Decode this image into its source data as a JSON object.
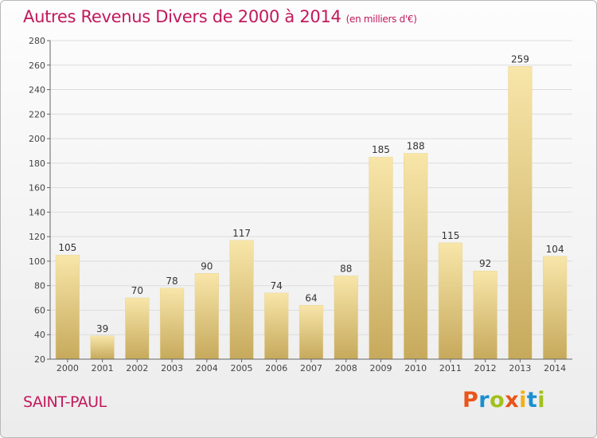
{
  "title": "Autres Revenus Divers de 2000 à 2014",
  "unit": "(en milliers d'€)",
  "place": "SAINT-PAUL",
  "logo": {
    "text": "Proxiti",
    "colors": [
      "#e9541a",
      "#1b8fd0",
      "#a2c11c",
      "#e9541a",
      "#f2b016",
      "#1b8fd0",
      "#a2c11c"
    ]
  },
  "colors": {
    "title": "#c2195b",
    "bar_light": "#f7e3a4",
    "bar_dark": "#c9ad62"
  },
  "chart_data": {
    "type": "bar",
    "title": "Autres Revenus Divers de 2000 à 2014",
    "xlabel": "",
    "ylabel": "",
    "categories": [
      "2000",
      "2001",
      "2002",
      "2003",
      "2004",
      "2005",
      "2006",
      "2007",
      "2008",
      "2009",
      "2010",
      "2011",
      "2012",
      "2013",
      "2014"
    ],
    "values": [
      105,
      39,
      70,
      78,
      90,
      117,
      74,
      64,
      88,
      185,
      188,
      115,
      92,
      259,
      104
    ],
    "ylim": [
      20,
      280
    ],
    "yticks": [
      20,
      40,
      60,
      80,
      100,
      120,
      140,
      160,
      180,
      200,
      220,
      240,
      260,
      280
    ],
    "grid": "horizontal",
    "legend": "none"
  }
}
